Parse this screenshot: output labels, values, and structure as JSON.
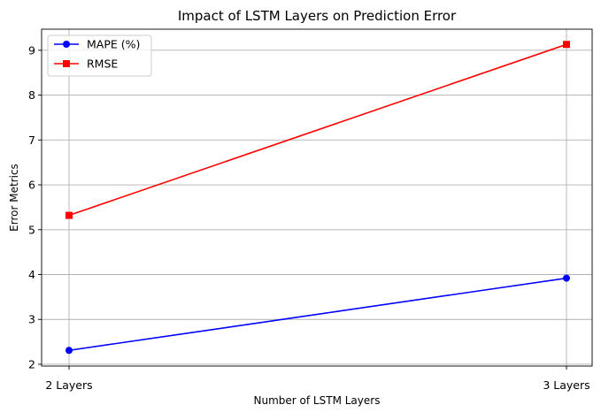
{
  "chart_data": {
    "type": "line",
    "title": "Impact of LSTM Layers on Prediction Error",
    "xlabel": "Number of LSTM Layers",
    "ylabel": "Error Metrics",
    "categories": [
      "2 Layers",
      "3 Layers"
    ],
    "series": [
      {
        "name": "MAPE (%)",
        "values": [
          2.31,
          3.92
        ],
        "color": "#0000ff",
        "marker": "circle"
      },
      {
        "name": "RMSE",
        "values": [
          5.32,
          9.13
        ],
        "color": "#ff0000",
        "marker": "square"
      }
    ],
    "ylim": [
      1.96,
      9.47
    ],
    "yticks": [
      2,
      3,
      4,
      5,
      6,
      7,
      8,
      9
    ],
    "grid": true,
    "legend_position": "top-left"
  }
}
